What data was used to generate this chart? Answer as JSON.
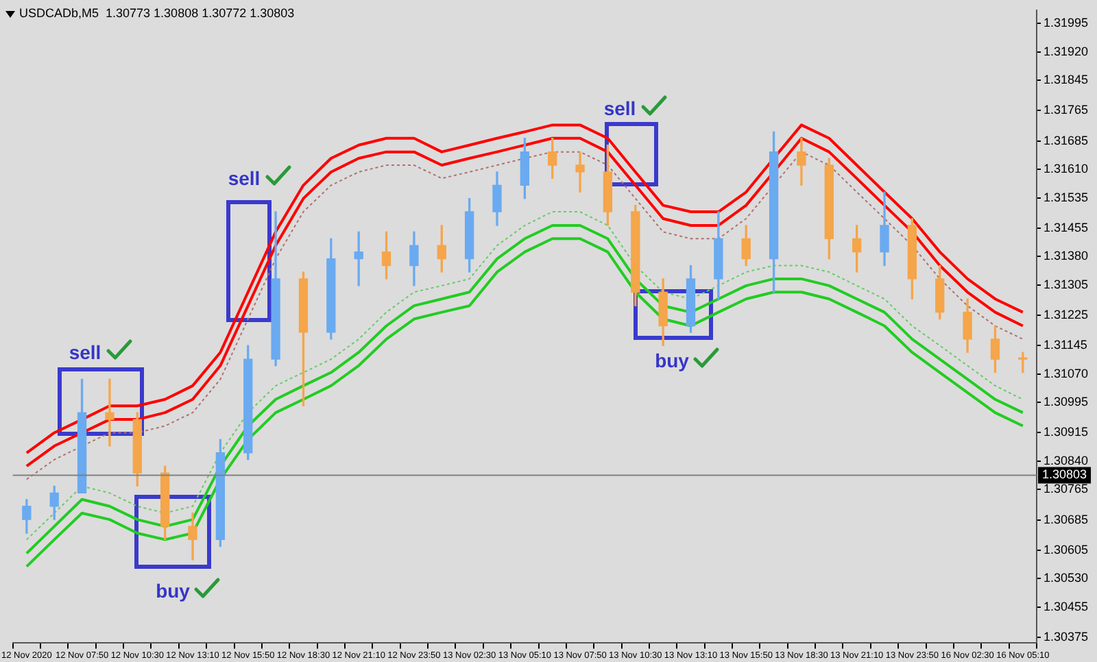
{
  "chart_data": {
    "type": "candlestick",
    "title": "USDCADb,M5  1.30773 1.30808 1.30772 1.30803",
    "categories": [
      "12 Nov 2020",
      null,
      "12 Nov 07:50",
      null,
      "12 Nov 10:30",
      null,
      "12 Nov 13:10",
      null,
      "12 Nov 15:50",
      null,
      "12 Nov 18:30",
      null,
      "12 Nov 21:10",
      null,
      "12 Nov 23:50",
      null,
      "13 Nov 02:30",
      null,
      "13 Nov 05:10",
      null,
      "13 Nov 07:50",
      null,
      "13 Nov 10:30",
      null,
      "13 Nov 13:10",
      null,
      "13 Nov 15:50",
      null,
      "13 Nov 18:30",
      null,
      "13 Nov 21:10",
      null,
      "13 Nov 23:50",
      null,
      "16 Nov 02:30",
      null,
      "16 Nov 05:10"
    ],
    "ohlc": [
      [
        1.30686,
        1.30739,
        1.3065,
        1.30721
      ],
      [
        1.30721,
        1.30774,
        1.30686,
        1.30756
      ],
      [
        1.30756,
        1.31056,
        1.30756,
        1.30968
      ],
      [
        1.30968,
        1.31056,
        1.3088,
        1.3095
      ],
      [
        1.3095,
        1.30968,
        1.30774,
        1.30809
      ],
      [
        1.30809,
        1.30827,
        1.30633,
        1.30668
      ],
      [
        1.30668,
        1.30703,
        1.3058,
        1.30633
      ],
      [
        1.30633,
        1.30897,
        1.30615,
        1.30862
      ],
      [
        1.30862,
        1.31145,
        1.30844,
        1.31109
      ],
      [
        1.31109,
        1.31498,
        1.31092,
        1.31321
      ],
      [
        1.31321,
        1.31339,
        1.30986,
        1.3118
      ],
      [
        1.3118,
        1.31427,
        1.31162,
        1.31374
      ],
      [
        1.31374,
        1.31445,
        1.31303,
        1.31392
      ],
      [
        1.31392,
        1.31445,
        1.31321,
        1.31356
      ],
      [
        1.31356,
        1.31445,
        1.31303,
        1.31409
      ],
      [
        1.31409,
        1.31462,
        1.31339,
        1.31374
      ],
      [
        1.31374,
        1.31533,
        1.31339,
        1.31498
      ],
      [
        1.31498,
        1.31603,
        1.31462,
        1.31568
      ],
      [
        1.31568,
        1.31692,
        1.31533,
        1.31656
      ],
      [
        1.31656,
        1.31692,
        1.31586,
        1.31621
      ],
      [
        1.31621,
        1.31656,
        1.3155,
        1.31603
      ],
      [
        1.31603,
        1.31674,
        1.31462,
        1.31498
      ],
      [
        1.31498,
        1.31515,
        1.3125,
        1.31286
      ],
      [
        1.31286,
        1.31321,
        1.31145,
        1.31197
      ],
      [
        1.31197,
        1.31356,
        1.3118,
        1.31321
      ],
      [
        1.31321,
        1.31498,
        1.31268,
        1.31427
      ],
      [
        1.31427,
        1.31462,
        1.31356,
        1.31374
      ],
      [
        1.31374,
        1.31709,
        1.31286,
        1.31656
      ],
      [
        1.31656,
        1.31692,
        1.31568,
        1.31621
      ],
      [
        1.31621,
        1.31639,
        1.31374,
        1.31427
      ],
      [
        1.31427,
        1.31462,
        1.31339,
        1.31392
      ],
      [
        1.31392,
        1.3155,
        1.31356,
        1.31462
      ],
      [
        1.31462,
        1.3148,
        1.31268,
        1.31321
      ],
      [
        1.31321,
        1.31356,
        1.31215,
        1.31233
      ],
      [
        1.31233,
        1.31268,
        1.31127,
        1.31162
      ],
      [
        1.31162,
        1.31197,
        1.31074,
        1.31109
      ],
      [
        1.31109,
        1.31127,
        1.31074,
        1.31109
      ]
    ],
    "colors": [
      "#6aaaf0",
      "#6aaaf0",
      "#6aaaf0",
      "#f5a54a",
      "#f5a54a",
      "#f5a54a",
      "#f5a54a",
      "#6aaaf0",
      "#6aaaf0",
      "#6aaaf0",
      "#f5a54a",
      "#6aaaf0",
      "#6aaaf0",
      "#f5a54a",
      "#6aaaf0",
      "#f5a54a",
      "#6aaaf0",
      "#6aaaf0",
      "#6aaaf0",
      "#f5a54a",
      "#f5a54a",
      "#f5a54a",
      "#f5a54a",
      "#f5a54a",
      "#6aaaf0",
      "#6aaaf0",
      "#f5a54a",
      "#6aaaf0",
      "#f5a54a",
      "#f5a54a",
      "#f5a54a",
      "#6aaaf0",
      "#f5a54a",
      "#f5a54a",
      "#f5a54a",
      "#f5a54a",
      "#f5a54a"
    ],
    "series": [
      {
        "type": "line",
        "color": "#ff0000",
        "line_style": "solid",
        "values": [
          1.30862,
          1.30915,
          1.3095,
          1.30986,
          1.30986,
          1.31003,
          1.31039,
          1.31127,
          1.31286,
          1.31445,
          1.31568,
          1.31639,
          1.31674,
          1.31692,
          1.31692,
          1.31656,
          1.31674,
          1.31692,
          1.31709,
          1.31727,
          1.31727,
          1.31692,
          1.31603,
          1.31515,
          1.31498,
          1.31498,
          1.3155,
          1.31639,
          1.31727,
          1.31692,
          1.31621,
          1.3155,
          1.3148,
          1.31392,
          1.31321,
          1.31268,
          1.31233
        ]
      },
      {
        "type": "line",
        "color": "#ff0000",
        "line_style": "solid",
        "values": [
          1.30827,
          1.3088,
          1.30915,
          1.3095,
          1.3095,
          1.30968,
          1.31003,
          1.31092,
          1.3125,
          1.31409,
          1.31533,
          1.31603,
          1.31639,
          1.31656,
          1.31656,
          1.31621,
          1.31639,
          1.31656,
          1.31674,
          1.31692,
          1.31692,
          1.31656,
          1.31568,
          1.3148,
          1.31462,
          1.31462,
          1.31515,
          1.31603,
          1.31692,
          1.31656,
          1.31586,
          1.31515,
          1.31445,
          1.31356,
          1.31286,
          1.31233,
          1.31197
        ]
      },
      {
        "type": "line",
        "color": "#b07070",
        "line_style": "dotted",
        "values": [
          1.30792,
          1.30844,
          null,
          1.30915,
          1.30915,
          1.30933,
          1.30968,
          1.31056,
          1.31215,
          1.31374,
          1.31498,
          1.31568,
          1.31603,
          1.31621,
          1.31621,
          1.31586,
          1.31603,
          1.31621,
          1.31639,
          1.31656,
          1.31656,
          1.31621,
          1.31533,
          1.31445,
          1.31427,
          1.31427,
          1.3148,
          1.31568,
          1.31656,
          1.31621,
          1.3155,
          1.3148,
          1.31409,
          1.31321,
          1.3125,
          1.31197,
          1.31162
        ]
      },
      {
        "type": "line",
        "color": "#66cc66",
        "line_style": "dotted",
        "values": [
          1.30633,
          1.30703,
          1.30774,
          1.30756,
          1.30721,
          1.30703,
          1.30721,
          1.30862,
          1.30968,
          1.31039,
          1.31074,
          1.31109,
          1.31162,
          1.31233,
          1.31286,
          1.31303,
          1.31321,
          1.31409,
          1.31462,
          1.31498,
          1.31498,
          1.31462,
          1.31356,
          1.31286,
          1.31268,
          1.31303,
          1.31339,
          1.31356,
          1.31356,
          1.31339,
          1.31303,
          1.31268,
          1.31197,
          1.31145,
          1.31092,
          1.31039,
          1.31003
        ]
      },
      {
        "type": "line",
        "color": "#22cc22",
        "line_style": "solid",
        "values": [
          1.30597,
          1.30668,
          1.30739,
          1.30721,
          1.30686,
          1.30668,
          1.30686,
          1.30827,
          1.30933,
          1.31003,
          1.31039,
          1.31074,
          1.31127,
          1.31197,
          1.3125,
          1.31268,
          1.31286,
          1.31374,
          1.31427,
          1.31462,
          1.31462,
          1.31427,
          1.31321,
          1.3125,
          1.31233,
          1.31268,
          1.31303,
          1.31321,
          1.31321,
          1.31303,
          1.31268,
          1.31233,
          1.31162,
          1.31109,
          1.31056,
          1.31003,
          1.30968
        ]
      },
      {
        "type": "line",
        "color": "#22cc22",
        "line_style": "solid",
        "values": [
          1.30562,
          1.30633,
          1.30703,
          1.30686,
          1.3065,
          1.30633,
          1.3065,
          1.30792,
          1.30897,
          1.30968,
          1.31003,
          1.31039,
          1.31092,
          1.31162,
          1.31215,
          1.31233,
          1.3125,
          1.31339,
          1.31392,
          1.31427,
          1.31427,
          1.31392,
          1.31286,
          1.31215,
          1.31197,
          1.31233,
          1.31268,
          1.31286,
          1.31286,
          1.31268,
          1.31233,
          1.31197,
          1.31127,
          1.31074,
          1.31021,
          1.30968,
          1.30933
        ]
      }
    ],
    "ylim": [
      1.3036,
      1.3203
    ],
    "yticks": [
      {
        "value": 1.31995,
        "label": "1.31995"
      },
      {
        "value": 1.3192,
        "label": "1.31920"
      },
      {
        "value": 1.31845,
        "label": "1.31845"
      },
      {
        "value": 1.31765,
        "label": "1.31765"
      },
      {
        "value": 1.31685,
        "label": "1.31685"
      },
      {
        "value": 1.3161,
        "label": "1.31610"
      },
      {
        "value": 1.31535,
        "label": "1.31535"
      },
      {
        "value": 1.31455,
        "label": "1.31455"
      },
      {
        "value": 1.3138,
        "label": "1.31380"
      },
      {
        "value": 1.31305,
        "label": "1.31305"
      },
      {
        "value": 1.31225,
        "label": "1.31225"
      },
      {
        "value": 1.31145,
        "label": "1.31145"
      },
      {
        "value": 1.3107,
        "label": "1.31070"
      },
      {
        "value": 1.30995,
        "label": "1.30995"
      },
      {
        "value": 1.30915,
        "label": "1.30915"
      },
      {
        "value": 1.3084,
        "label": "1.30840"
      },
      {
        "value": 1.30765,
        "label": "1.30765"
      },
      {
        "value": 1.30685,
        "label": "1.30685"
      },
      {
        "value": 1.30605,
        "label": "1.30605"
      },
      {
        "value": 1.3053,
        "label": "1.30530"
      },
      {
        "value": 1.30455,
        "label": "1.30455"
      },
      {
        "value": 1.30375,
        "label": "1.30375"
      }
    ],
    "ref_lines": [
      {
        "axis": "y",
        "value": 1.30803,
        "label": "1.30803",
        "color": "#808080"
      }
    ],
    "annotations": [
      "sell",
      "buy",
      "sell",
      "sell",
      "buy"
    ],
    "marker": "none",
    "grid": false
  }
}
